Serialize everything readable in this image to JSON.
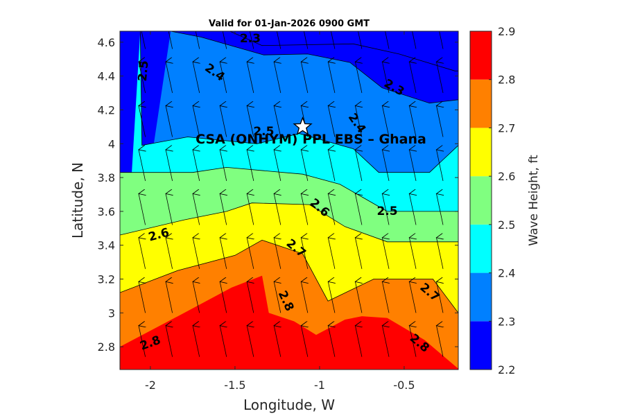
{
  "chart_data": {
    "type": "filled-contour-with-vector-field",
    "title": "Valid for 01-Jan-2026 0900 GMT",
    "xlabel": "Longitude, W",
    "ylabel": "Latitude, N",
    "xlim": [
      -2.18,
      -0.18
    ],
    "ylim": [
      2.665,
      4.665
    ],
    "xticks": [
      -2,
      -1.5,
      -1,
      -0.5
    ],
    "xtick_labels": [
      "-2",
      "-1.5",
      "-1",
      "-0.5"
    ],
    "yticks": [
      2.8,
      3.0,
      3.2,
      3.4,
      3.6,
      3.8,
      4.0,
      4.2,
      4.4,
      4.6
    ],
    "ytick_labels": [
      "2.8",
      "3",
      "3.2",
      "3.4",
      "3.6",
      "3.8",
      "4",
      "4.2",
      "4.4",
      "4.6"
    ],
    "colorbar": {
      "label": "Wave Height, ft",
      "limits": [
        2.2,
        2.9
      ],
      "ticks": [
        2.2,
        2.3,
        2.4,
        2.5,
        2.6,
        2.7,
        2.8,
        2.9
      ],
      "tick_labels": [
        "2.2",
        "2.3",
        "2.4",
        "2.5",
        "2.6",
        "2.7",
        "2.8",
        "2.9"
      ],
      "level_colors": [
        "#0000ff",
        "#0080ff",
        "#00ffff",
        "#80ff80",
        "#ffff00",
        "#ff8000",
        "#ff0000"
      ]
    },
    "contour_levels": [
      {
        "level": 2.3,
        "path": [
          [
            -0.18,
            4.43
          ],
          [
            -0.2,
            4.43
          ],
          [
            -0.53,
            4.53
          ],
          [
            -0.8,
            4.59
          ],
          [
            -1.34,
            4.58
          ],
          [
            -1.53,
            4.665
          ]
        ]
      },
      {
        "level": 2.4,
        "path": [
          [
            -0.18,
            4.26
          ],
          [
            -0.35,
            4.24
          ],
          [
            -0.63,
            4.33
          ],
          [
            -0.82,
            4.48
          ],
          [
            -1.07,
            4.53
          ],
          [
            -1.33,
            4.525
          ],
          [
            -1.7,
            4.63
          ],
          [
            -1.88,
            4.665
          ]
        ]
      },
      {
        "level": 2.5,
        "path": [
          [
            -0.18,
            3.99
          ],
          [
            -0.35,
            3.83
          ],
          [
            -0.65,
            3.83
          ],
          [
            -0.8,
            3.97
          ],
          [
            -1.12,
            4.06
          ],
          [
            -1.37,
            4.0
          ],
          [
            -1.78,
            4.04
          ],
          [
            -2.05,
            3.99
          ],
          [
            -2.06,
            4.665
          ]
        ]
      },
      {
        "level": 2.6,
        "path": [
          [
            -0.18,
            3.6
          ],
          [
            -0.6,
            3.6
          ],
          [
            -0.88,
            3.76
          ],
          [
            -1.1,
            3.82
          ],
          [
            -1.55,
            3.86
          ],
          [
            -1.75,
            3.83
          ],
          [
            -2.18,
            3.83
          ]
        ]
      },
      {
        "level": 2.7,
        "path": [
          [
            -0.18,
            3.42
          ],
          [
            -0.6,
            3.42
          ],
          [
            -0.85,
            3.51
          ],
          [
            -1.06,
            3.64
          ],
          [
            -1.4,
            3.65
          ],
          [
            -1.55,
            3.6
          ],
          [
            -1.8,
            3.55
          ],
          [
            -2.18,
            3.46
          ]
        ]
      },
      {
        "level": 2.8,
        "path": [
          [
            -0.18,
            3.0
          ],
          [
            -0.33,
            3.2
          ],
          [
            -0.5,
            3.2
          ],
          [
            -0.68,
            3.2
          ],
          [
            -0.95,
            3.07
          ],
          [
            -1.1,
            3.35
          ],
          [
            -1.34,
            3.43
          ],
          [
            -1.5,
            3.34
          ],
          [
            -1.84,
            3.25
          ],
          [
            -2.18,
            3.12
          ]
        ]
      },
      {
        "level": 2.9,
        "path": [
          [
            -0.18,
            2.67
          ],
          [
            -0.38,
            2.84
          ],
          [
            -0.6,
            2.97
          ],
          [
            -0.75,
            2.98
          ],
          [
            -0.85,
            2.96
          ],
          [
            -1.02,
            2.87
          ],
          [
            -1.15,
            2.95
          ],
          [
            -1.3,
            3.0
          ],
          [
            -1.34,
            3.22
          ],
          [
            -1.52,
            3.15
          ],
          [
            -1.8,
            3.0
          ],
          [
            -2.18,
            2.8
          ]
        ]
      }
    ],
    "contour_labels": [
      {
        "text": "2.3",
        "x": -1.41,
        "y": 4.62,
        "angle": 0
      },
      {
        "text": "2.3",
        "x": -0.56,
        "y": 4.33,
        "angle": 30
      },
      {
        "text": "2.4",
        "x": -1.62,
        "y": 4.42,
        "angle": 35
      },
      {
        "text": "2.4",
        "x": -0.78,
        "y": 4.12,
        "angle": 55
      },
      {
        "text": "2.5",
        "x": -2.04,
        "y": 4.43,
        "angle": -85
      },
      {
        "text": "2.5",
        "x": -1.33,
        "y": 4.07,
        "angle": 0
      },
      {
        "text": "2.5",
        "x": -0.6,
        "y": 3.6,
        "angle": 0
      },
      {
        "text": "2.6",
        "x": -1.95,
        "y": 3.46,
        "angle": -15
      },
      {
        "text": "2.6",
        "x": -1.0,
        "y": 3.62,
        "angle": 40
      },
      {
        "text": "2.7",
        "x": -1.14,
        "y": 3.38,
        "angle": 40
      },
      {
        "text": "2.7",
        "x": -0.35,
        "y": 3.12,
        "angle": 40
      },
      {
        "text": "2.8",
        "x": -2.0,
        "y": 2.82,
        "angle": -20
      },
      {
        "text": "2.8",
        "x": -1.2,
        "y": 3.07,
        "angle": 65
      },
      {
        "text": "2.8",
        "x": -0.41,
        "y": 2.82,
        "angle": 40
      }
    ],
    "station": {
      "name": "CSA (ONHYM) PPL EBS  – Ghana",
      "x": -1.1,
      "y": 4.1
    },
    "vector_grid": {
      "x": [
        -2.03,
        -1.87,
        -1.71,
        -1.55,
        -1.39,
        -1.23,
        -1.07,
        -0.91,
        -0.75,
        -0.59,
        -0.43,
        -0.27
      ],
      "y": [
        2.74,
        3.0,
        3.26,
        3.52,
        3.78,
        4.04,
        4.3,
        4.56
      ],
      "direction_deg_from_north": -12
    }
  }
}
